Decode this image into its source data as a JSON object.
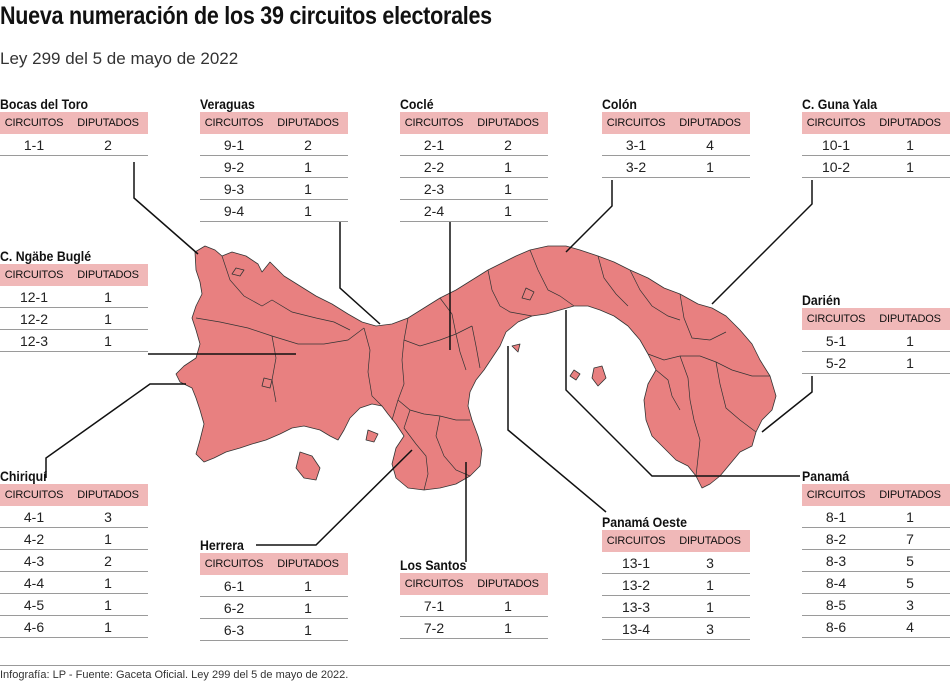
{
  "title": "Nueva numeración de los 39 circuitos electorales",
  "subtitle": "Ley 299 del 5 de mayo de 2022",
  "source": "Infografía: LP - Fuente: Gaceta Oficial. Ley 299 del 5 de mayo de 2022.",
  "colors": {
    "map_fill": "#e88080",
    "header_fill": "#f0b8b8",
    "border": "#333333"
  },
  "table_headers": {
    "circuits": "CIRCUITOS",
    "deputies": "DIPUTADOS"
  },
  "regions": [
    {
      "id": "bocas",
      "name": "Bocas del Toro",
      "rows": [
        {
          "circuit": "1-1",
          "deputies": "2"
        }
      ]
    },
    {
      "id": "veraguas",
      "name": "Veraguas",
      "rows": [
        {
          "circuit": "9-1",
          "deputies": "2"
        },
        {
          "circuit": "9-2",
          "deputies": "1"
        },
        {
          "circuit": "9-3",
          "deputies": "1"
        },
        {
          "circuit": "9-4",
          "deputies": "1"
        }
      ]
    },
    {
      "id": "cocle",
      "name": "Coclé",
      "rows": [
        {
          "circuit": "2-1",
          "deputies": "2"
        },
        {
          "circuit": "2-2",
          "deputies": "1"
        },
        {
          "circuit": "2-3",
          "deputies": "1"
        },
        {
          "circuit": "2-4",
          "deputies": "1"
        }
      ]
    },
    {
      "id": "colon",
      "name": "Colón",
      "rows": [
        {
          "circuit": "3-1",
          "deputies": "4"
        },
        {
          "circuit": "3-2",
          "deputies": "1"
        }
      ]
    },
    {
      "id": "gunayala",
      "name": "C. Guna Yala",
      "rows": [
        {
          "circuit": "10-1",
          "deputies": "1"
        },
        {
          "circuit": "10-2",
          "deputies": "1"
        }
      ]
    },
    {
      "id": "ngabe",
      "name": "C. Ngäbe Buglé",
      "rows": [
        {
          "circuit": "12-1",
          "deputies": "1"
        },
        {
          "circuit": "12-2",
          "deputies": "1"
        },
        {
          "circuit": "12-3",
          "deputies": "1"
        }
      ]
    },
    {
      "id": "darien",
      "name": "Darién",
      "rows": [
        {
          "circuit": "5-1",
          "deputies": "1"
        },
        {
          "circuit": "5-2",
          "deputies": "1"
        }
      ]
    },
    {
      "id": "chiriqui",
      "name": "Chiriquí",
      "rows": [
        {
          "circuit": "4-1",
          "deputies": "3"
        },
        {
          "circuit": "4-2",
          "deputies": "1"
        },
        {
          "circuit": "4-3",
          "deputies": "2"
        },
        {
          "circuit": "4-4",
          "deputies": "1"
        },
        {
          "circuit": "4-5",
          "deputies": "1"
        },
        {
          "circuit": "4-6",
          "deputies": "1"
        }
      ]
    },
    {
      "id": "panama",
      "name": "Panamá",
      "rows": [
        {
          "circuit": "8-1",
          "deputies": "1"
        },
        {
          "circuit": "8-2",
          "deputies": "7"
        },
        {
          "circuit": "8-3",
          "deputies": "5"
        },
        {
          "circuit": "8-4",
          "deputies": "5"
        },
        {
          "circuit": "8-5",
          "deputies": "3"
        },
        {
          "circuit": "8-6",
          "deputies": "4"
        }
      ]
    },
    {
      "id": "herrera",
      "name": "Herrera",
      "rows": [
        {
          "circuit": "6-1",
          "deputies": "1"
        },
        {
          "circuit": "6-2",
          "deputies": "1"
        },
        {
          "circuit": "6-3",
          "deputies": "1"
        }
      ]
    },
    {
      "id": "lossantos",
      "name": "Los Santos",
      "rows": [
        {
          "circuit": "7-1",
          "deputies": "1"
        },
        {
          "circuit": "7-2",
          "deputies": "1"
        }
      ]
    },
    {
      "id": "panamaoeste",
      "name": "Panamá Oeste",
      "rows": [
        {
          "circuit": "13-1",
          "deputies": "3"
        },
        {
          "circuit": "13-2",
          "deputies": "1"
        },
        {
          "circuit": "13-3",
          "deputies": "1"
        },
        {
          "circuit": "13-4",
          "deputies": "3"
        }
      ]
    }
  ]
}
